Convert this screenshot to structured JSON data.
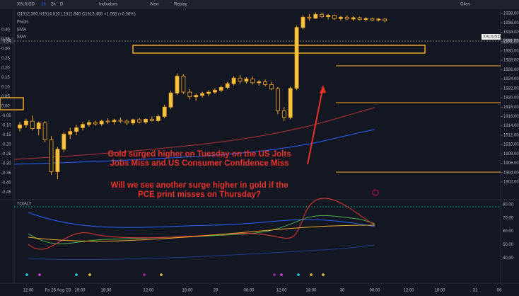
{
  "toolbar": {
    "symbol": "XAUUSD",
    "intervals": [
      "1h",
      "2h",
      "D"
    ],
    "buttons": [
      "Indicators",
      "Alert",
      "Replay"
    ],
    "user": "Giles"
  },
  "legend": {
    "ohlc": "O1912.390 H1914.810 L1911.940 C1913.455 +1.065 (+0.06%)",
    "studies": [
      "Pivots",
      "EMA",
      "EMA"
    ]
  },
  "left_axis": [
    "0.40",
    "0.35",
    "0.30",
    "0.25",
    "0.20",
    "0.15",
    "0.10",
    "0.05",
    "0.00",
    "-0.05",
    "-0.10",
    "-0.15",
    "-0.20",
    "-0.25",
    "-0.30",
    "-0.35",
    "-0.40",
    "-0.45"
  ],
  "left_tag": "0.34",
  "price_axis": [
    {
      "value": 1938,
      "label": "1938.00"
    },
    {
      "value": 1936,
      "label": "1936.00"
    },
    {
      "value": 1934,
      "label": "1934.00"
    },
    {
      "value": 1932,
      "label": "1932.00"
    },
    {
      "value": 1930,
      "label": "1930.00"
    },
    {
      "value": 1928,
      "label": "1928.00"
    },
    {
      "value": 1926,
      "label": "1926.00"
    },
    {
      "value": 1924,
      "label": "1924.00"
    },
    {
      "value": 1922,
      "label": "1922.00"
    },
    {
      "value": 1920,
      "label": "1920.00"
    },
    {
      "value": 1918,
      "label": "1918.00"
    },
    {
      "value": 1916,
      "label": "1916.00"
    },
    {
      "value": 1914,
      "label": "1914.00"
    },
    {
      "value": 1912,
      "label": "1912.00"
    },
    {
      "value": 1910,
      "label": "1910.00"
    },
    {
      "value": 1908,
      "label": "1908.00"
    },
    {
      "value": 1906,
      "label": "1906.00"
    },
    {
      "value": 1904,
      "label": "1904.00"
    },
    {
      "value": 1902,
      "label": "1902.00"
    }
  ],
  "price_tag": {
    "symbol": "XAUUSD",
    "price": "1935.77"
  },
  "candles": [
    [
      1913.5,
      1914.8,
      1912.8,
      1914.2
    ],
    [
      1914.2,
      1915.5,
      1913.6,
      1915
    ],
    [
      1915,
      1916.2,
      1913,
      1913.4
    ],
    [
      1913.4,
      1914.9,
      1912,
      1914.6
    ],
    [
      1914.6,
      1915,
      1910.5,
      1911
    ],
    [
      1911,
      1911.8,
      1903.5,
      1904.2
    ],
    [
      1904.2,
      1909.5,
      1902.6,
      1909
    ],
    [
      1909,
      1912.6,
      1908.4,
      1912.2
    ],
    [
      1912.2,
      1913.6,
      1911.2,
      1912.8
    ],
    [
      1912.8,
      1914.2,
      1912,
      1913.6
    ],
    [
      1913.6,
      1914.8,
      1913,
      1914.3
    ],
    [
      1914.3,
      1915.2,
      1913.8,
      1914.7
    ],
    [
      1914.7,
      1915.1,
      1914,
      1914.4
    ],
    [
      1914.4,
      1915.3,
      1914,
      1915
    ],
    [
      1915,
      1915.6,
      1914.4,
      1914.9
    ],
    [
      1914.9,
      1915.5,
      1914.3,
      1915.2
    ],
    [
      1915.2,
      1915.8,
      1914.6,
      1915
    ],
    [
      1915,
      1915.4,
      1914.2,
      1914.6
    ],
    [
      1914.6,
      1915.5,
      1914.2,
      1915.3
    ],
    [
      1915.3,
      1915.7,
      1914.5,
      1914.8
    ],
    [
      1914.8,
      1915.6,
      1914.4,
      1915.4
    ],
    [
      1915.4,
      1916,
      1914.9,
      1915.1
    ],
    [
      1915.1,
      1916.4,
      1914.8,
      1916
    ],
    [
      1916,
      1918.5,
      1915.6,
      1918
    ],
    [
      1918,
      1921.5,
      1917.6,
      1921
    ],
    [
      1921,
      1925.2,
      1920.6,
      1924.6
    ],
    [
      1924.6,
      1925,
      1920.8,
      1921.2
    ],
    [
      1921.2,
      1921.8,
      1919.6,
      1920.2
    ],
    [
      1920.2,
      1920.9,
      1919.4,
      1920.5
    ],
    [
      1920.5,
      1921.3,
      1920,
      1920.9
    ],
    [
      1920.9,
      1921.6,
      1920.3,
      1921.2
    ],
    [
      1921.2,
      1922,
      1920.8,
      1921.6
    ],
    [
      1921.6,
      1922.6,
      1921.2,
      1922.2
    ],
    [
      1922.2,
      1923.4,
      1921.8,
      1923
    ],
    [
      1923,
      1924.6,
      1922.6,
      1924.2
    ],
    [
      1924.2,
      1924.8,
      1923,
      1923.5
    ],
    [
      1923.5,
      1924.4,
      1923,
      1924
    ],
    [
      1924,
      1924.5,
      1922.8,
      1923.2
    ],
    [
      1923.2,
      1923.8,
      1922.6,
      1923.4
    ],
    [
      1923.4,
      1923.9,
      1922.4,
      1922.8
    ],
    [
      1922.8,
      1923.4,
      1921.6,
      1921.9
    ],
    [
      1921.9,
      1922.3,
      1916.5,
      1917.2
    ],
    [
      1917.2,
      1918,
      1915,
      1915.8
    ],
    [
      1915.8,
      1922.4,
      1915.4,
      1922
    ],
    [
      1922,
      1935.4,
      1921.6,
      1935
    ],
    [
      1935,
      1937.6,
      1934.6,
      1937.2
    ],
    [
      1937.2,
      1937.9,
      1936.5,
      1937
    ],
    [
      1937,
      1938.2,
      1936.8,
      1937.8
    ],
    [
      1937.8,
      1938.2,
      1937,
      1937.3
    ],
    [
      1937.3,
      1937.9,
      1936.7,
      1937.6
    ],
    [
      1937.6,
      1937.8,
      1936.6,
      1936.9
    ],
    [
      1936.9,
      1937.5,
      1936.5,
      1937.2
    ],
    [
      1937.2,
      1937.6,
      1936.6,
      1936.8
    ],
    [
      1936.8,
      1937.4,
      1936.4,
      1937.1
    ],
    [
      1937.1,
      1937.3,
      1936.5,
      1936.7
    ],
    [
      1936.7,
      1937.2,
      1936.3,
      1936.9
    ],
    [
      1936.9,
      1937.1,
      1936.4,
      1936.6
    ],
    [
      1936.6,
      1937,
      1936.3,
      1936.8
    ],
    [
      1936.8,
      1937,
      1936.1,
      1936.4
    ]
  ],
  "annotation": [
    "Gold surged higher on Tuesday on the US Jolts",
    "Jobs Miss and US Consumer Confidence Miss",
    "Will we see another surge higher in gold if the",
    "PCE print misses on Thursday?"
  ],
  "indicator": {
    "name": "TOIALT",
    "axis": [
      "80.00",
      "70.00",
      "60.00",
      "50.00",
      "40.00"
    ]
  },
  "time_axis": [
    "12:00",
    "Fri 25 Aug '23",
    "19:00",
    "18:00",
    "12:00",
    "18:00",
    "29",
    "06:00",
    "12:00",
    "18:00",
    "30",
    "06:00",
    "12:00",
    "18:00",
    "31",
    "06"
  ]
}
